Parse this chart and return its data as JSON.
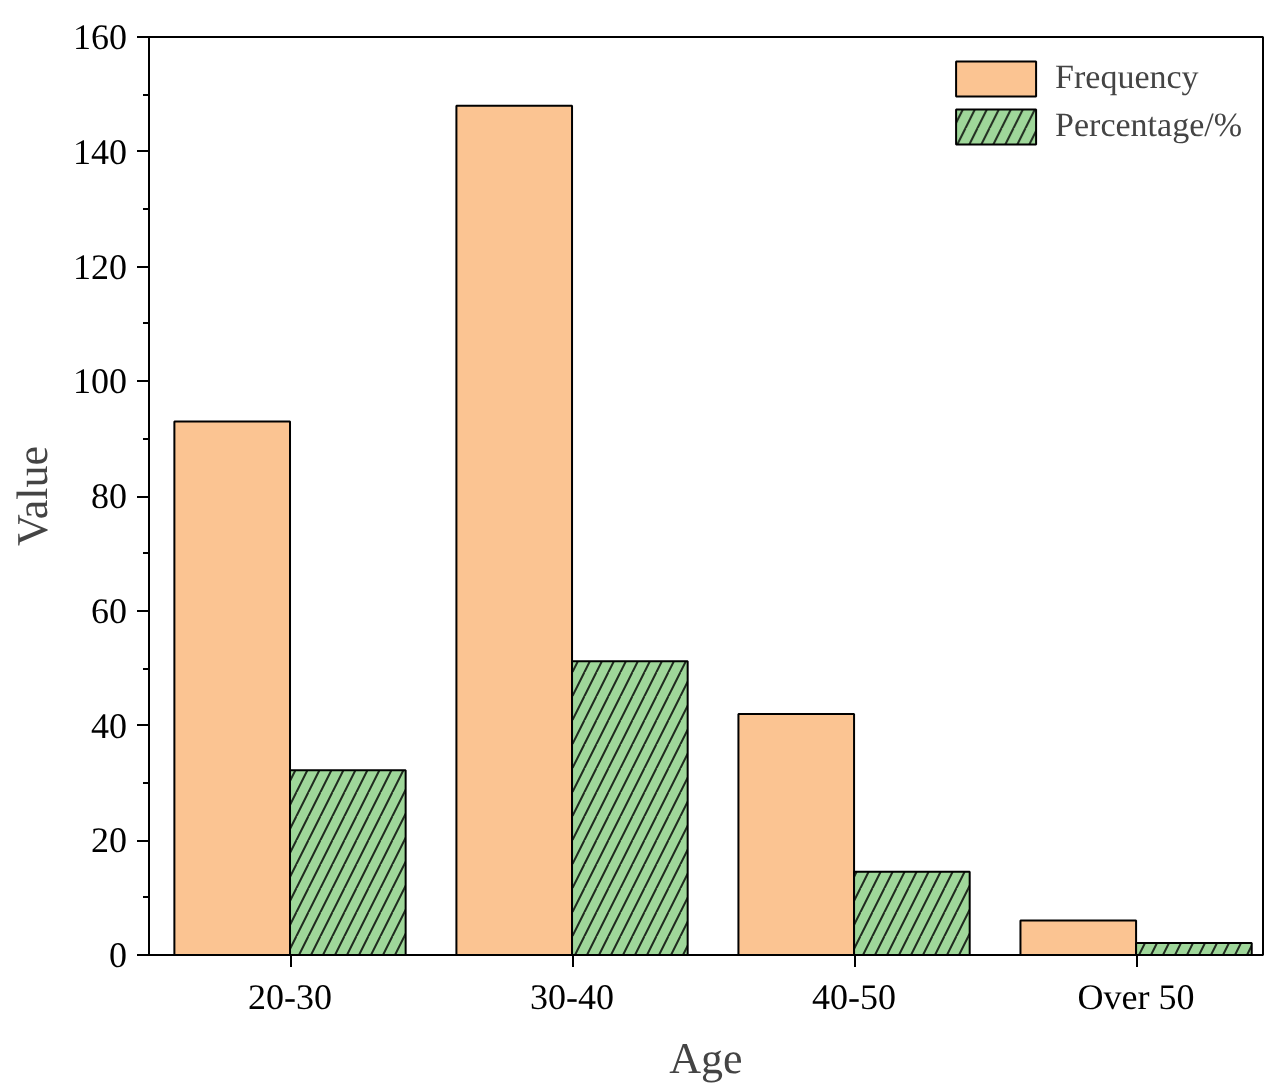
{
  "chart_data": {
    "type": "bar",
    "xlabel": "Age",
    "ylabel": "Value",
    "categories": [
      "20-30",
      "30-40",
      "40-50",
      "Over 50"
    ],
    "series": [
      {
        "name": "Frequency",
        "color": "#fbc492",
        "values": [
          93,
          148,
          42,
          6
        ]
      },
      {
        "name": "Percentage/%",
        "color": "#9fd79a",
        "values": [
          32.2,
          51.2,
          14.5,
          2.1
        ]
      }
    ],
    "ylim": [
      0,
      160
    ],
    "yticks": [
      0,
      20,
      40,
      60,
      80,
      100,
      120,
      140,
      160
    ],
    "grid": false,
    "legend": "top right"
  }
}
